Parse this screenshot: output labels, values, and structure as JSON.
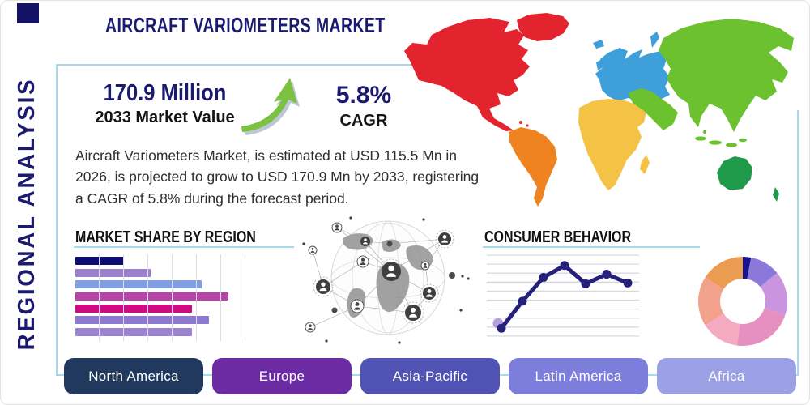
{
  "page": {
    "title": "AIRCRAFT VARIOMETERS MARKET",
    "side_label": "REGIONAL ANALYSIS"
  },
  "stats": {
    "market_value": "170.9 Million",
    "market_value_caption": "2033 Market Value",
    "cagr_value": "5.8%",
    "cagr_caption": "CAGR",
    "arrow_color": "#7cc142"
  },
  "description": "Aircraft Variometers Market, is estimated at USD 115.5 Mn in 2026, is projected to grow to USD 170.9 Mn by 2033, registering a CAGR of 5.8% during the forecast period.",
  "icons": {
    "growth_arrow": "growth-arrow-icon",
    "globe": "connected-globe-graphic",
    "logo": "logo-mark"
  },
  "colors": {
    "title_navy": "#1b1a6e",
    "panel_border": "#a7d9ea",
    "heading_underline": "#a7d9ea",
    "body_text": "#2e2e2e"
  },
  "map": {
    "north_america": "#e3242e",
    "greenland": "#e3242e",
    "south_america": "#ef8322",
    "europe": "#3f9fdb",
    "africa": "#f4c245",
    "asia": "#6cc12f",
    "australia": "#1f9a4b"
  },
  "region_buttons": [
    {
      "label": "North America",
      "color": "#20395c"
    },
    {
      "label": "Europe",
      "color": "#6b2ba3"
    },
    {
      "label": "Asia-Pacific",
      "color": "#5053b4"
    },
    {
      "label": "Latin America",
      "color": "#7d7edb"
    },
    {
      "label": "Africa",
      "color": "#9ca0e5"
    }
  ],
  "chart_data": [
    {
      "type": "bar",
      "orientation": "horizontal",
      "title": "MARKET SHARE BY REGION",
      "values": [
        20,
        31,
        52,
        63,
        48,
        55,
        48
      ],
      "colors": [
        "#0d0c72",
        "#9b80cb",
        "#7f9fdf",
        "#b944a7",
        "#ce0c82",
        "#8b79d2",
        "#9a83cf"
      ],
      "xlim": [
        0,
        100
      ],
      "grid": true,
      "legend": false
    },
    {
      "type": "line",
      "title": "CONSUMER BEHAVIOR",
      "x": [
        1,
        2,
        3,
        4,
        5,
        6,
        7
      ],
      "values": [
        10,
        44,
        74,
        89,
        66,
        78,
        67
      ],
      "ylim": [
        0,
        100
      ],
      "grid": "horizontal",
      "line_color": "#26217b",
      "point_color": "#26217b",
      "first_point_halo_color": "#b39fdc"
    },
    {
      "type": "pie",
      "donut": true,
      "values": [
        3,
        11,
        16,
        22,
        14,
        18,
        16
      ],
      "colors": [
        "#18148f",
        "#8a79d9",
        "#ca94de",
        "#e690c1",
        "#f4aac1",
        "#f2a28b",
        "#ea9c50"
      ],
      "legend": false
    }
  ]
}
